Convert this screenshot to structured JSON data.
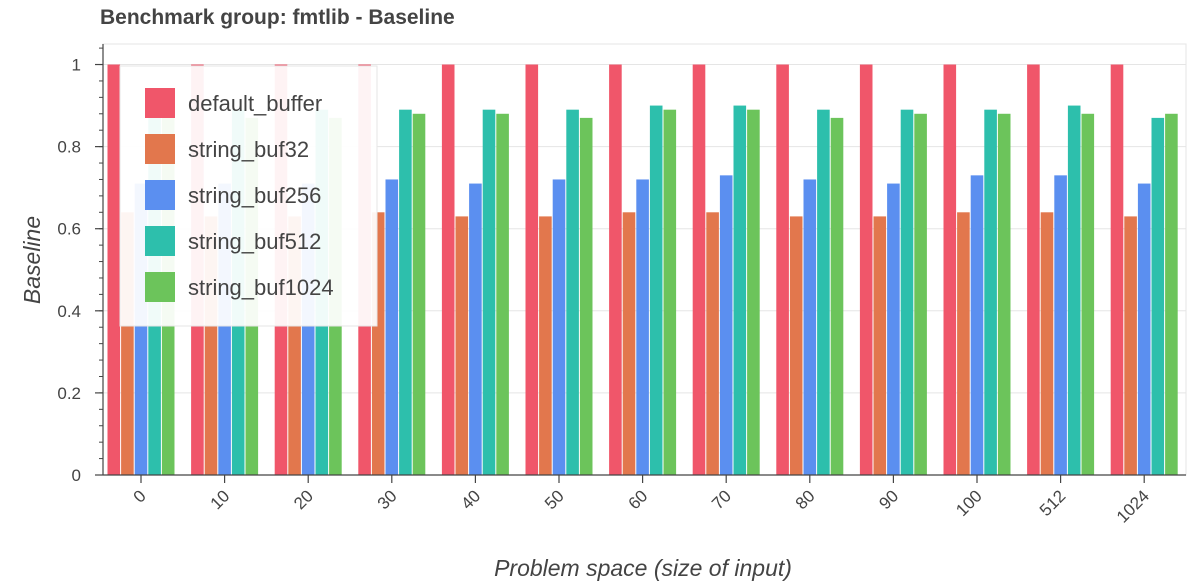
{
  "chart_data": {
    "type": "bar",
    "title": "Benchmark group: fmtlib - Baseline",
    "xlabel": "Problem space (size of input)",
    "ylabel": "Baseline",
    "categories": [
      "0",
      "10",
      "20",
      "30",
      "40",
      "50",
      "60",
      "70",
      "80",
      "90",
      "100",
      "512",
      "1024"
    ],
    "ylim": [
      0,
      1.05
    ],
    "yticks": [
      "0",
      "0.2",
      "0.4",
      "0.6",
      "0.8",
      "1"
    ],
    "grid": true,
    "legend_position": "top-left",
    "series": [
      {
        "name": "default_buffer",
        "color": "#f0566a",
        "values": [
          1,
          1,
          1,
          1,
          1,
          1,
          1,
          1,
          1,
          1,
          1,
          1,
          1
        ]
      },
      {
        "name": "string_buf32",
        "color": "#e2774d",
        "values": [
          0.64,
          0.63,
          0.63,
          0.64,
          0.63,
          0.63,
          0.64,
          0.64,
          0.63,
          0.63,
          0.64,
          0.64,
          0.63
        ]
      },
      {
        "name": "string_buf256",
        "color": "#5b8ff0",
        "values": [
          0.71,
          0.71,
          0.71,
          0.72,
          0.71,
          0.72,
          0.72,
          0.73,
          0.72,
          0.71,
          0.73,
          0.73,
          0.71
        ]
      },
      {
        "name": "string_buf512",
        "color": "#2dbfac",
        "values": [
          0.89,
          0.89,
          0.89,
          0.89,
          0.89,
          0.89,
          0.9,
          0.9,
          0.89,
          0.89,
          0.89,
          0.9,
          0.87
        ]
      },
      {
        "name": "string_buf1024",
        "color": "#6cc45b",
        "values": [
          0.87,
          0.87,
          0.87,
          0.88,
          0.88,
          0.87,
          0.89,
          0.89,
          0.87,
          0.88,
          0.88,
          0.88,
          0.88
        ]
      }
    ]
  }
}
